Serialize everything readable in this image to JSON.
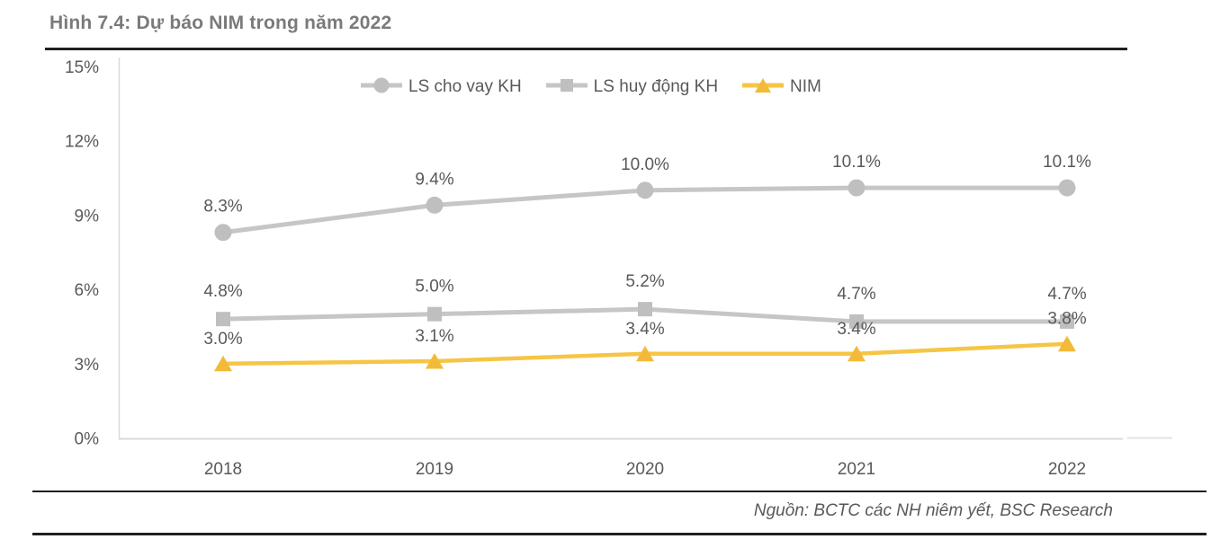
{
  "figure": {
    "title": "Hình 7.4: Dự báo NIM trong năm 2022",
    "source": "Nguồn: BCTC các NH niêm yết, BSC Research"
  },
  "colors": {
    "title_text": "#7a7a7a",
    "label_text": "#595959",
    "axis_line": "#d9d9d9",
    "dark_rule": "#1f1f1f",
    "gray_series_line": "#c6c6c6",
    "gray_series_marker": "#bfbfbf",
    "gold_series_line": "#f6c545",
    "gold_series_marker": "#f2ba38"
  },
  "chart_data": {
    "type": "line",
    "title": "Hình 7.4: Dự báo NIM trong năm 2022",
    "categories": [
      "2018",
      "2019",
      "2020",
      "2021",
      "2022"
    ],
    "series": [
      {
        "name": "LS cho vay KH",
        "marker": "circle",
        "color": "#c6c6c6",
        "marker_color": "#bfbfbf",
        "values": [
          8.3,
          9.4,
          10.0,
          10.1,
          10.1
        ],
        "data_labels": [
          "8.3%",
          "9.4%",
          "10.0%",
          "10.1%",
          "10.1%"
        ]
      },
      {
        "name": "LS huy động KH",
        "marker": "square",
        "color": "#c6c6c6",
        "marker_color": "#bfbfbf",
        "values": [
          4.8,
          5.0,
          5.2,
          4.7,
          4.7
        ],
        "data_labels": [
          "4.8%",
          "5.0%",
          "5.2%",
          "4.7%",
          "4.7%"
        ]
      },
      {
        "name": "NIM",
        "marker": "triangle",
        "color": "#f6c545",
        "marker_color": "#f2ba38",
        "values": [
          3.0,
          3.1,
          3.4,
          3.4,
          3.8
        ],
        "data_labels": [
          "3.0%",
          "3.1%",
          "3.4%",
          "3.4%",
          "3.8%"
        ]
      }
    ],
    "y_axis": {
      "min": 0,
      "max": 15,
      "tick_values": [
        0,
        3,
        6,
        9,
        12,
        15
      ],
      "tick_labels": [
        "0%",
        "3%",
        "6%",
        "9%",
        "12%",
        "15%"
      ]
    },
    "legend_position": "top",
    "grid": false
  }
}
